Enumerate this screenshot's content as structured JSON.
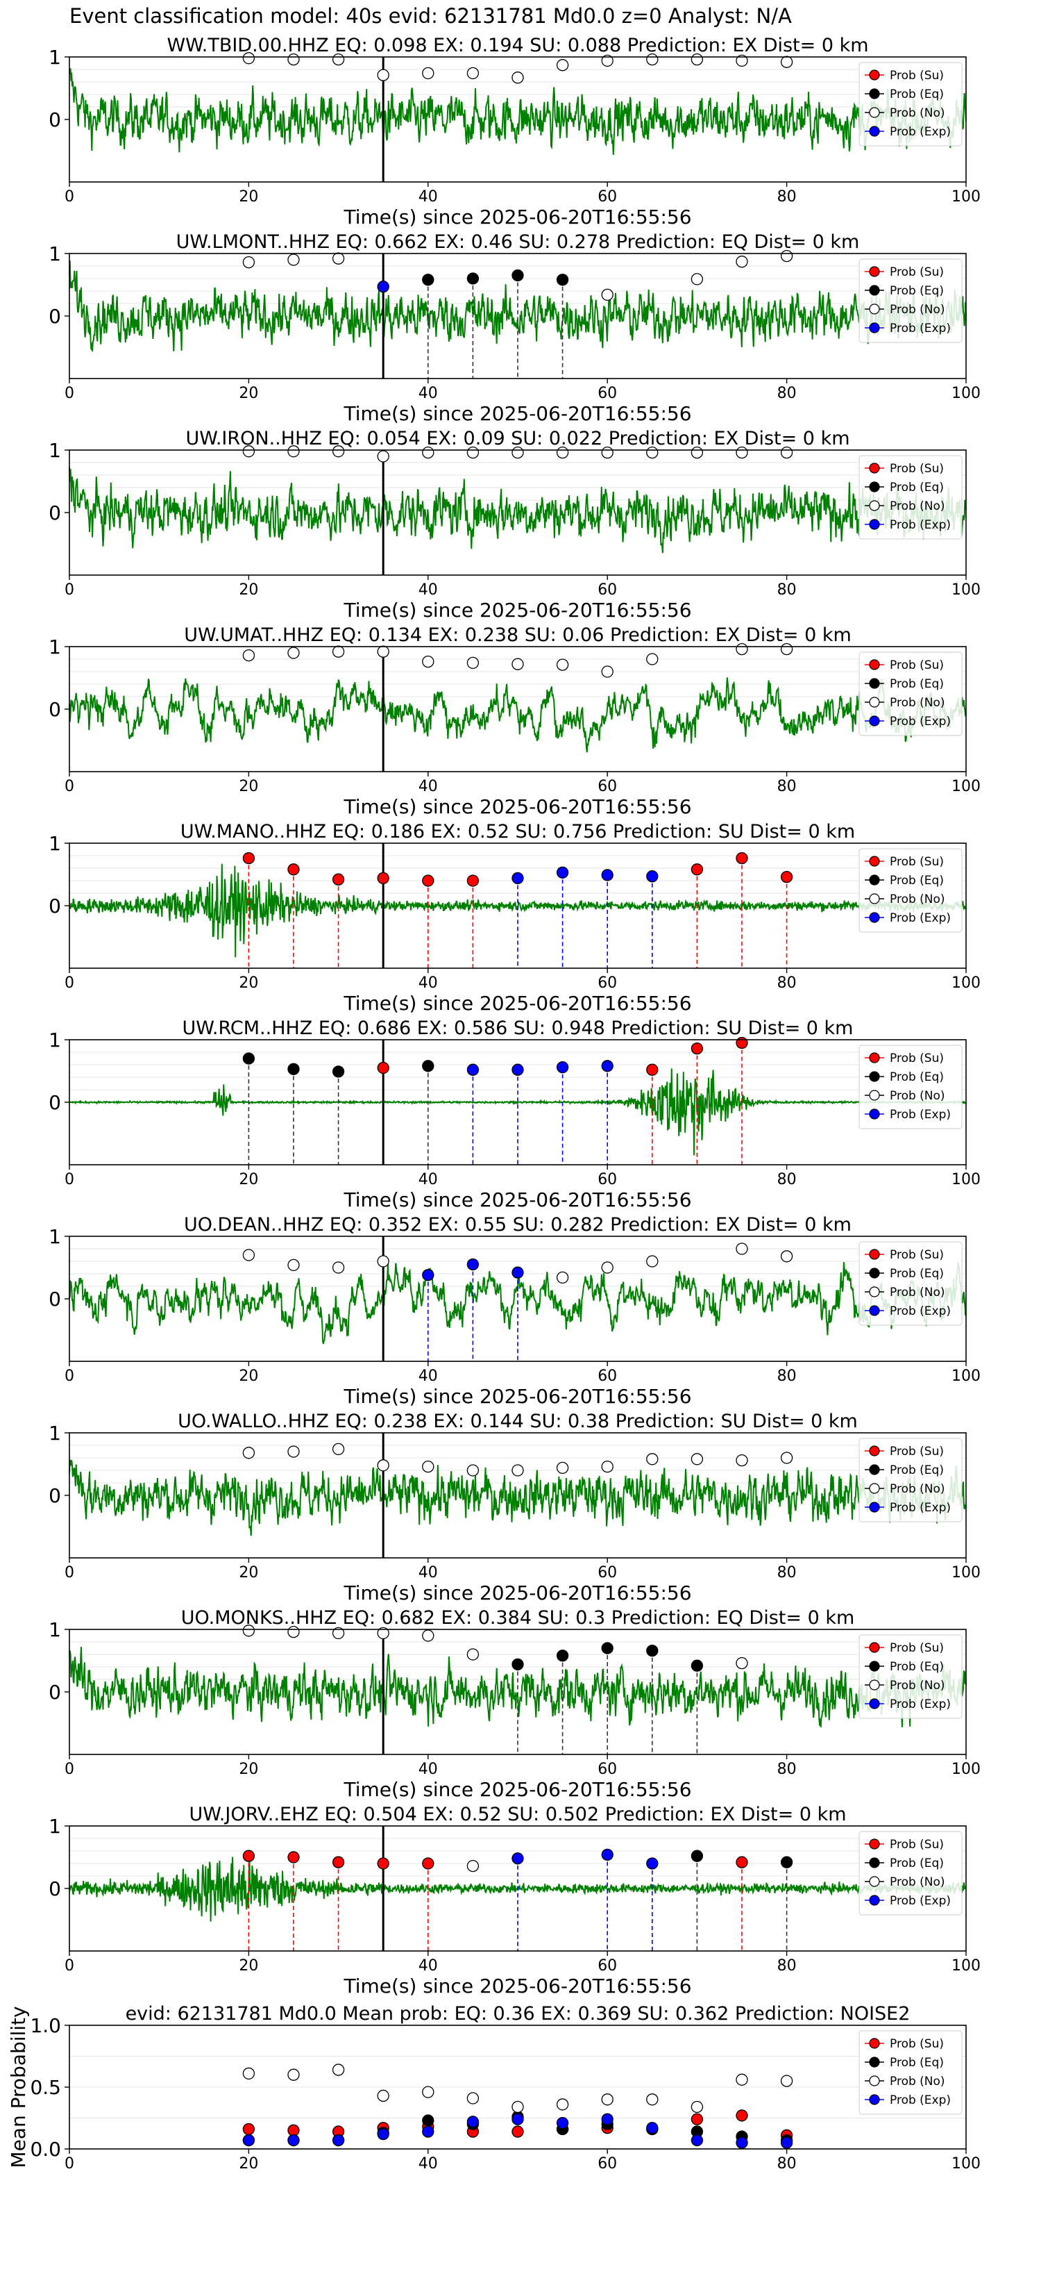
{
  "suptitle": "Event classification model: 40s evid: 62131781 Md0.0 z=0 Analyst: N/A",
  "colors": {
    "waveform": "#008000",
    "su": "#ff0000",
    "eq": "#000000",
    "no": "#ffffff",
    "exp": "#0000ff",
    "onset": "#000000"
  },
  "legend": [
    "Prob (Su)",
    "Prob (Eq)",
    "Prob (No)",
    "Prob (Exp)"
  ],
  "chart_data": [
    {
      "type": "scatter",
      "title": "WW.TBID.00.HHZ   EQ: 0.098  EX: 0.194  SU: 0.088   Prediction: EX    Dist= 0 km",
      "xlabel": "Time(s) since 2025-06-20T16:55:56",
      "xlim": [
        0,
        100
      ],
      "ylim": [
        -1,
        1
      ],
      "xticks": [
        "0",
        "20",
        "40",
        "60",
        "80",
        "100"
      ],
      "yticks": [
        "1",
        "0"
      ],
      "onset_line": 35,
      "legend_position": "upper right",
      "waveform_style": "noise",
      "points": [
        [
          20,
          "No",
          0.98
        ],
        [
          25,
          "No",
          0.96
        ],
        [
          30,
          "No",
          0.96
        ],
        [
          35,
          "No",
          0.71
        ],
        [
          40,
          "No",
          0.74
        ],
        [
          45,
          "No",
          0.74
        ],
        [
          50,
          "No",
          0.67
        ],
        [
          55,
          "No",
          0.87
        ],
        [
          60,
          "No",
          0.94
        ],
        [
          65,
          "No",
          0.96
        ],
        [
          70,
          "No",
          0.96
        ],
        [
          75,
          "No",
          0.94
        ],
        [
          80,
          "No",
          0.92
        ]
      ]
    },
    {
      "type": "scatter",
      "title": "UW.LMONT..HHZ   EQ: 0.662  EX: 0.46  SU: 0.278   Prediction: EQ    Dist= 0 km",
      "xlabel": "Time(s) since 2025-06-20T16:55:56",
      "xlim": [
        0,
        100
      ],
      "ylim": [
        -1,
        1
      ],
      "xticks": [
        "0",
        "20",
        "40",
        "60",
        "80",
        "100"
      ],
      "yticks": [
        "1",
        "0"
      ],
      "onset_line": 35,
      "legend_position": "upper right",
      "waveform_style": "noise",
      "points": [
        [
          20,
          "No",
          0.86
        ],
        [
          25,
          "No",
          0.9
        ],
        [
          30,
          "No",
          0.92
        ],
        [
          35,
          "Exp",
          0.47
        ],
        [
          40,
          "Eq",
          0.58
        ],
        [
          45,
          "Eq",
          0.6
        ],
        [
          50,
          "Eq",
          0.65
        ],
        [
          55,
          "Eq",
          0.58
        ],
        [
          60,
          "No",
          0.34
        ],
        [
          70,
          "No",
          0.59
        ],
        [
          75,
          "No",
          0.87
        ],
        [
          80,
          "No",
          0.96
        ]
      ]
    },
    {
      "type": "scatter",
      "title": "UW.IRON..HHZ   EQ: 0.054  EX: 0.09  SU: 0.022   Prediction: EX    Dist= 0 km",
      "xlabel": "Time(s) since 2025-06-20T16:55:56",
      "xlim": [
        0,
        100
      ],
      "ylim": [
        -1,
        1
      ],
      "xticks": [
        "0",
        "20",
        "40",
        "60",
        "80",
        "100"
      ],
      "yticks": [
        "1",
        "0"
      ],
      "onset_line": 35,
      "legend_position": "upper right",
      "waveform_style": "noise",
      "points": [
        [
          20,
          "No",
          0.98
        ],
        [
          25,
          "No",
          0.98
        ],
        [
          30,
          "No",
          0.98
        ],
        [
          35,
          "No",
          0.9
        ],
        [
          40,
          "No",
          0.96
        ],
        [
          45,
          "No",
          0.96
        ],
        [
          50,
          "No",
          0.96
        ],
        [
          55,
          "No",
          0.96
        ],
        [
          60,
          "No",
          0.96
        ],
        [
          65,
          "No",
          0.96
        ],
        [
          70,
          "No",
          0.96
        ],
        [
          75,
          "No",
          0.96
        ],
        [
          80,
          "No",
          0.96
        ]
      ]
    },
    {
      "type": "scatter",
      "title": "UW.UMAT..HHZ   EQ: 0.134  EX: 0.238  SU: 0.06   Prediction: EX    Dist= 0 km",
      "xlabel": "Time(s) since 2025-06-20T16:55:56",
      "xlim": [
        0,
        100
      ],
      "ylim": [
        -1,
        1
      ],
      "xticks": [
        "0",
        "20",
        "40",
        "60",
        "80",
        "100"
      ],
      "yticks": [
        "1",
        "0"
      ],
      "onset_line": 35,
      "legend_position": "upper right",
      "waveform_style": "low_freq",
      "points": [
        [
          20,
          "No",
          0.86
        ],
        [
          25,
          "No",
          0.9
        ],
        [
          30,
          "No",
          0.92
        ],
        [
          35,
          "No",
          0.92
        ],
        [
          40,
          "No",
          0.76
        ],
        [
          45,
          "No",
          0.74
        ],
        [
          50,
          "No",
          0.72
        ],
        [
          55,
          "No",
          0.71
        ],
        [
          60,
          "No",
          0.6
        ],
        [
          65,
          "No",
          0.8
        ],
        [
          75,
          "No",
          0.96
        ],
        [
          80,
          "No",
          0.96
        ]
      ]
    },
    {
      "type": "scatter",
      "title": "UW.MANO..HHZ   EQ: 0.186  EX: 0.52  SU: 0.756   Prediction: SU    Dist= 0 km",
      "xlabel": "Time(s) since 2025-06-20T16:55:56",
      "xlim": [
        0,
        100
      ],
      "ylim": [
        -1,
        1
      ],
      "xticks": [
        "0",
        "20",
        "40",
        "60",
        "80",
        "100"
      ],
      "yticks": [
        "1",
        "0"
      ],
      "onset_line": 35,
      "legend_position": "upper right",
      "waveform_style": "burst_early",
      "points": [
        [
          20,
          "Su",
          0.76
        ],
        [
          25,
          "Su",
          0.58
        ],
        [
          30,
          "Su",
          0.42
        ],
        [
          35,
          "Su",
          0.44
        ],
        [
          40,
          "Su",
          0.4
        ],
        [
          45,
          "Su",
          0.4
        ],
        [
          50,
          "Exp",
          0.44
        ],
        [
          55,
          "Exp",
          0.53
        ],
        [
          60,
          "Exp",
          0.49
        ],
        [
          65,
          "Exp",
          0.47
        ],
        [
          70,
          "Su",
          0.58
        ],
        [
          75,
          "Su",
          0.76
        ],
        [
          80,
          "Su",
          0.46
        ]
      ]
    },
    {
      "type": "scatter",
      "title": "UW.RCM..HHZ   EQ: 0.686  EX: 0.586  SU: 0.948   Prediction: SU    Dist= 0 km",
      "xlabel": "Time(s) since 2025-06-20T16:55:56",
      "xlim": [
        0,
        100
      ],
      "ylim": [
        -1,
        1
      ],
      "xticks": [
        "0",
        "20",
        "40",
        "60",
        "80",
        "100"
      ],
      "yticks": [
        "1",
        "0"
      ],
      "onset_line": 35,
      "legend_position": "upper right",
      "waveform_style": "quiet_burst",
      "points": [
        [
          20,
          "Eq",
          0.7
        ],
        [
          25,
          "Eq",
          0.53
        ],
        [
          30,
          "Eq",
          0.49
        ],
        [
          35,
          "Su",
          0.55
        ],
        [
          40,
          "Eq",
          0.58
        ],
        [
          45,
          "Exp",
          0.52
        ],
        [
          50,
          "Exp",
          0.52
        ],
        [
          55,
          "Exp",
          0.56
        ],
        [
          60,
          "Exp",
          0.58
        ],
        [
          65,
          "Su",
          0.52
        ],
        [
          70,
          "Su",
          0.86
        ],
        [
          75,
          "Su",
          0.95
        ]
      ]
    },
    {
      "type": "scatter",
      "title": "UO.DEAN..HHZ   EQ: 0.352  EX: 0.55  SU: 0.282   Prediction: EX    Dist= 0 km",
      "xlabel": "Time(s) since 2025-06-20T16:55:56",
      "xlim": [
        0,
        100
      ],
      "ylim": [
        -1,
        1
      ],
      "xticks": [
        "0",
        "20",
        "40",
        "60",
        "80",
        "100"
      ],
      "yticks": [
        "1",
        "0"
      ],
      "onset_line": 35,
      "legend_position": "upper right",
      "waveform_style": "low_freq",
      "points": [
        [
          20,
          "No",
          0.7
        ],
        [
          25,
          "No",
          0.54
        ],
        [
          30,
          "No",
          0.5
        ],
        [
          35,
          "No",
          0.6
        ],
        [
          40,
          "Exp",
          0.38
        ],
        [
          45,
          "Exp",
          0.55
        ],
        [
          50,
          "Exp",
          0.42
        ],
        [
          55,
          "No",
          0.34
        ],
        [
          60,
          "No",
          0.5
        ],
        [
          65,
          "No",
          0.6
        ],
        [
          75,
          "No",
          0.8
        ],
        [
          80,
          "No",
          0.68
        ]
      ]
    },
    {
      "type": "scatter",
      "title": "UO.WALLO..HHZ   EQ: 0.238  EX: 0.144  SU: 0.38   Prediction: SU    Dist= 0 km",
      "xlabel": "Time(s) since 2025-06-20T16:55:56",
      "xlim": [
        0,
        100
      ],
      "ylim": [
        -1,
        1
      ],
      "xticks": [
        "0",
        "20",
        "40",
        "60",
        "80",
        "100"
      ],
      "yticks": [
        "1",
        "0"
      ],
      "onset_line": 35,
      "legend_position": "upper right",
      "waveform_style": "noise",
      "points": [
        [
          20,
          "No",
          0.68
        ],
        [
          25,
          "No",
          0.7
        ],
        [
          30,
          "No",
          0.74
        ],
        [
          35,
          "No",
          0.48
        ],
        [
          40,
          "No",
          0.46
        ],
        [
          45,
          "No",
          0.4
        ],
        [
          50,
          "No",
          0.4
        ],
        [
          55,
          "No",
          0.44
        ],
        [
          60,
          "No",
          0.46
        ],
        [
          65,
          "No",
          0.58
        ],
        [
          70,
          "No",
          0.58
        ],
        [
          75,
          "No",
          0.56
        ],
        [
          80,
          "No",
          0.6
        ]
      ]
    },
    {
      "type": "scatter",
      "title": "UO.MONKS..HHZ   EQ: 0.682  EX: 0.384  SU: 0.3   Prediction: EQ    Dist= 0 km",
      "xlabel": "Time(s) since 2025-06-20T16:55:56",
      "xlim": [
        0,
        100
      ],
      "ylim": [
        -1,
        1
      ],
      "xticks": [
        "0",
        "20",
        "40",
        "60",
        "80",
        "100"
      ],
      "yticks": [
        "1",
        "0"
      ],
      "onset_line": 35,
      "legend_position": "upper right",
      "waveform_style": "noise",
      "points": [
        [
          20,
          "No",
          0.98
        ],
        [
          25,
          "No",
          0.96
        ],
        [
          30,
          "No",
          0.94
        ],
        [
          35,
          "No",
          0.94
        ],
        [
          40,
          "No",
          0.9
        ],
        [
          45,
          "No",
          0.6
        ],
        [
          50,
          "Eq",
          0.44
        ],
        [
          55,
          "Eq",
          0.58
        ],
        [
          60,
          "Eq",
          0.7
        ],
        [
          65,
          "Eq",
          0.66
        ],
        [
          70,
          "Eq",
          0.42
        ],
        [
          75,
          "No",
          0.46
        ]
      ]
    },
    {
      "type": "scatter",
      "title": "UW.JORV..EHZ   EQ: 0.504  EX: 0.52  SU: 0.502   Prediction: EX    Dist= 0 km",
      "xlabel": "Time(s) since 2025-06-20T16:55:56",
      "xlim": [
        0,
        100
      ],
      "ylim": [
        -1,
        1
      ],
      "xticks": [
        "0",
        "20",
        "40",
        "60",
        "80",
        "100"
      ],
      "yticks": [
        "1",
        "0"
      ],
      "onset_line": 35,
      "legend_position": "upper right",
      "waveform_style": "burst_early",
      "points": [
        [
          20,
          "Su",
          0.52
        ],
        [
          25,
          "Su",
          0.5
        ],
        [
          30,
          "Su",
          0.42
        ],
        [
          35,
          "Su",
          0.4
        ],
        [
          40,
          "Su",
          0.4
        ],
        [
          45,
          "No",
          0.36
        ],
        [
          50,
          "Exp",
          0.48
        ],
        [
          60,
          "Exp",
          0.54
        ],
        [
          65,
          "Exp",
          0.4
        ],
        [
          70,
          "Eq",
          0.52
        ],
        [
          75,
          "Su",
          0.42
        ],
        [
          80,
          "Eq",
          0.42
        ]
      ]
    },
    {
      "type": "scatter",
      "title": "evid: 62131781  Md0.0   Mean prob:   EQ: 0.36  EX: 0.369  SU: 0.362   Prediction: NOISE2",
      "xlabel": "",
      "ylabel": "Mean Probability",
      "xlim": [
        0,
        100
      ],
      "ylim": [
        0,
        1
      ],
      "xticks": [
        "0",
        "20",
        "40",
        "60",
        "80",
        "100"
      ],
      "yticks": [
        "1.0",
        "0.5",
        "0.0"
      ],
      "legend_position": "upper right",
      "series": [
        {
          "name": "Prob (Su)",
          "x": [
            20,
            25,
            30,
            35,
            40,
            45,
            50,
            55,
            60,
            65,
            70,
            75,
            80
          ],
          "y": [
            0.16,
            0.15,
            0.14,
            0.17,
            0.18,
            0.14,
            0.14,
            0.16,
            0.17,
            0.16,
            0.24,
            0.27,
            0.11
          ]
        },
        {
          "name": "Prob (Eq)",
          "x": [
            20,
            25,
            30,
            35,
            40,
            45,
            50,
            55,
            60,
            65,
            70,
            75,
            80
          ],
          "y": [
            0.07,
            0.07,
            0.07,
            0.13,
            0.23,
            0.2,
            0.26,
            0.16,
            0.2,
            0.16,
            0.14,
            0.1,
            0.07
          ]
        },
        {
          "name": "Prob (No)",
          "x": [
            20,
            25,
            30,
            35,
            40,
            45,
            50,
            55,
            60,
            65,
            70,
            75,
            80
          ],
          "y": [
            0.61,
            0.6,
            0.64,
            0.43,
            0.46,
            0.41,
            0.34,
            0.36,
            0.4,
            0.4,
            0.34,
            0.56,
            0.55
          ]
        },
        {
          "name": "Prob (Exp)",
          "x": [
            20,
            25,
            30,
            35,
            40,
            45,
            50,
            55,
            60,
            65,
            70,
            75,
            80
          ],
          "y": [
            0.07,
            0.07,
            0.07,
            0.12,
            0.14,
            0.22,
            0.24,
            0.21,
            0.24,
            0.17,
            0.07,
            0.05,
            0.05
          ]
        }
      ]
    }
  ]
}
